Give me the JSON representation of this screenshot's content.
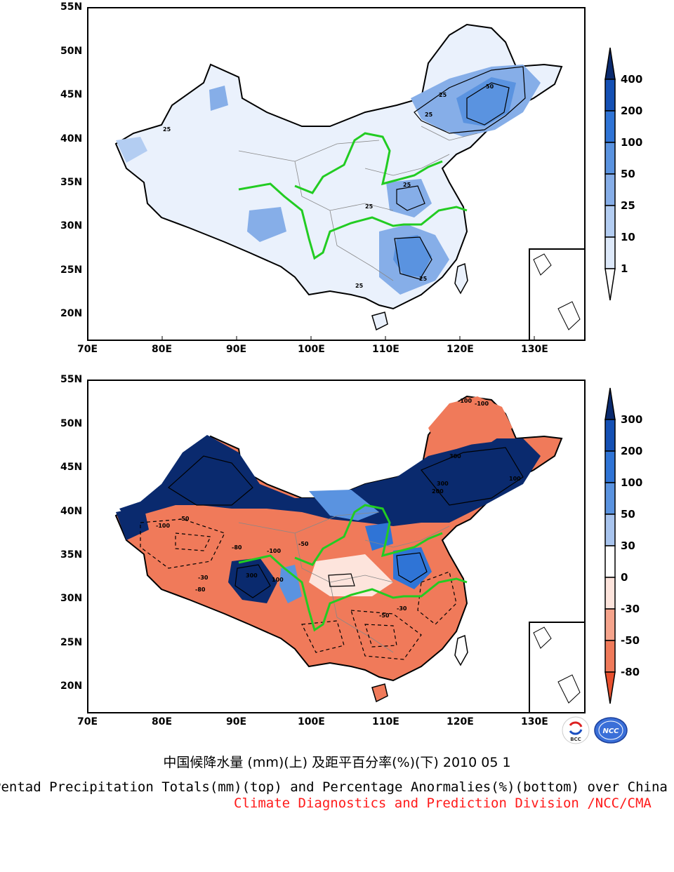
{
  "top_map": {
    "lat_labels": [
      "55N",
      "50N",
      "45N",
      "40N",
      "35N",
      "30N",
      "25N",
      "20N"
    ],
    "lon_labels": [
      "70E",
      "80E",
      "90E",
      "100E",
      "110E",
      "120E",
      "130E"
    ],
    "contour_labels": [
      "25",
      "25",
      "25",
      "25",
      "25",
      "50",
      "25",
      "25"
    ],
    "colorbar": {
      "labels": [
        "400",
        "200",
        "100",
        "50",
        "25",
        "10",
        "1"
      ],
      "colors": [
        "#0a2a6e",
        "#1450b4",
        "#2f74d6",
        "#5a93e0",
        "#86aee8",
        "#b3cdf2",
        "#dde9fa",
        "#ffffff"
      ]
    }
  },
  "bottom_map": {
    "lat_labels": [
      "55N",
      "50N",
      "45N",
      "40N",
      "35N",
      "30N",
      "25N",
      "20N"
    ],
    "lon_labels": [
      "70E",
      "80E",
      "90E",
      "100E",
      "110E",
      "120E",
      "130E"
    ],
    "contour_labels": [
      "-100",
      "-100",
      "300",
      "300",
      "200",
      "100",
      "-50",
      "-100",
      "-80",
      "300",
      "100",
      "-50",
      "-30",
      "-80",
      "-30",
      "-50",
      "-100"
    ],
    "colorbar": {
      "labels": [
        "300",
        "200",
        "100",
        "50",
        "30",
        "0",
        "-30",
        "-50",
        "-80"
      ],
      "colors": [
        "#0a2a6e",
        "#1450b4",
        "#2f74d6",
        "#5a93e0",
        "#a8c4ee",
        "#ffffff",
        "#fde4dc",
        "#f6a48c",
        "#f07a5a",
        "#e8502e"
      ]
    }
  },
  "logos": {
    "bcc_text": "BCC",
    "ncc_text": "NCC"
  },
  "title_cn": "中国候降水量 (mm)(上) 及距平百分率(%)(下) 2010 05 1",
  "title_en": "Pentad Precipitation Totals(mm)(top) and Percentage Anormalies(%)(bottom) over China",
  "credit": "Climate Diagnostics and Prediction Division /NCC/CMA",
  "colors": {
    "river": "#22cc22",
    "credit": "#ff1a1a"
  }
}
